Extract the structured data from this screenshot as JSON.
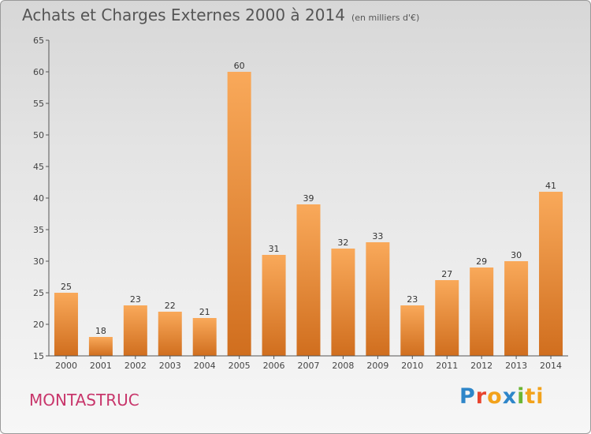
{
  "chart_data": {
    "type": "bar",
    "title": "Achats et Charges Externes 2000 à 2014",
    "subtitle": "(en milliers d'€)",
    "categories": [
      "2000",
      "2001",
      "2002",
      "2003",
      "2004",
      "2005",
      "2006",
      "2007",
      "2008",
      "2009",
      "2010",
      "2011",
      "2012",
      "2013",
      "2014"
    ],
    "values": [
      25,
      18,
      23,
      22,
      21,
      60,
      31,
      39,
      32,
      33,
      23,
      27,
      29,
      30,
      41
    ],
    "ylim": [
      15,
      65
    ],
    "yticks": [
      15,
      20,
      25,
      30,
      35,
      40,
      45,
      50,
      55,
      60,
      65
    ],
    "grid": false,
    "bar_color_light": "#f9a95a",
    "bar_color_dark": "#d06e1e"
  },
  "commune": "MONTASTRUC",
  "logo": {
    "letters": [
      "P",
      "r",
      "o",
      "x",
      "i",
      "ti"
    ]
  }
}
